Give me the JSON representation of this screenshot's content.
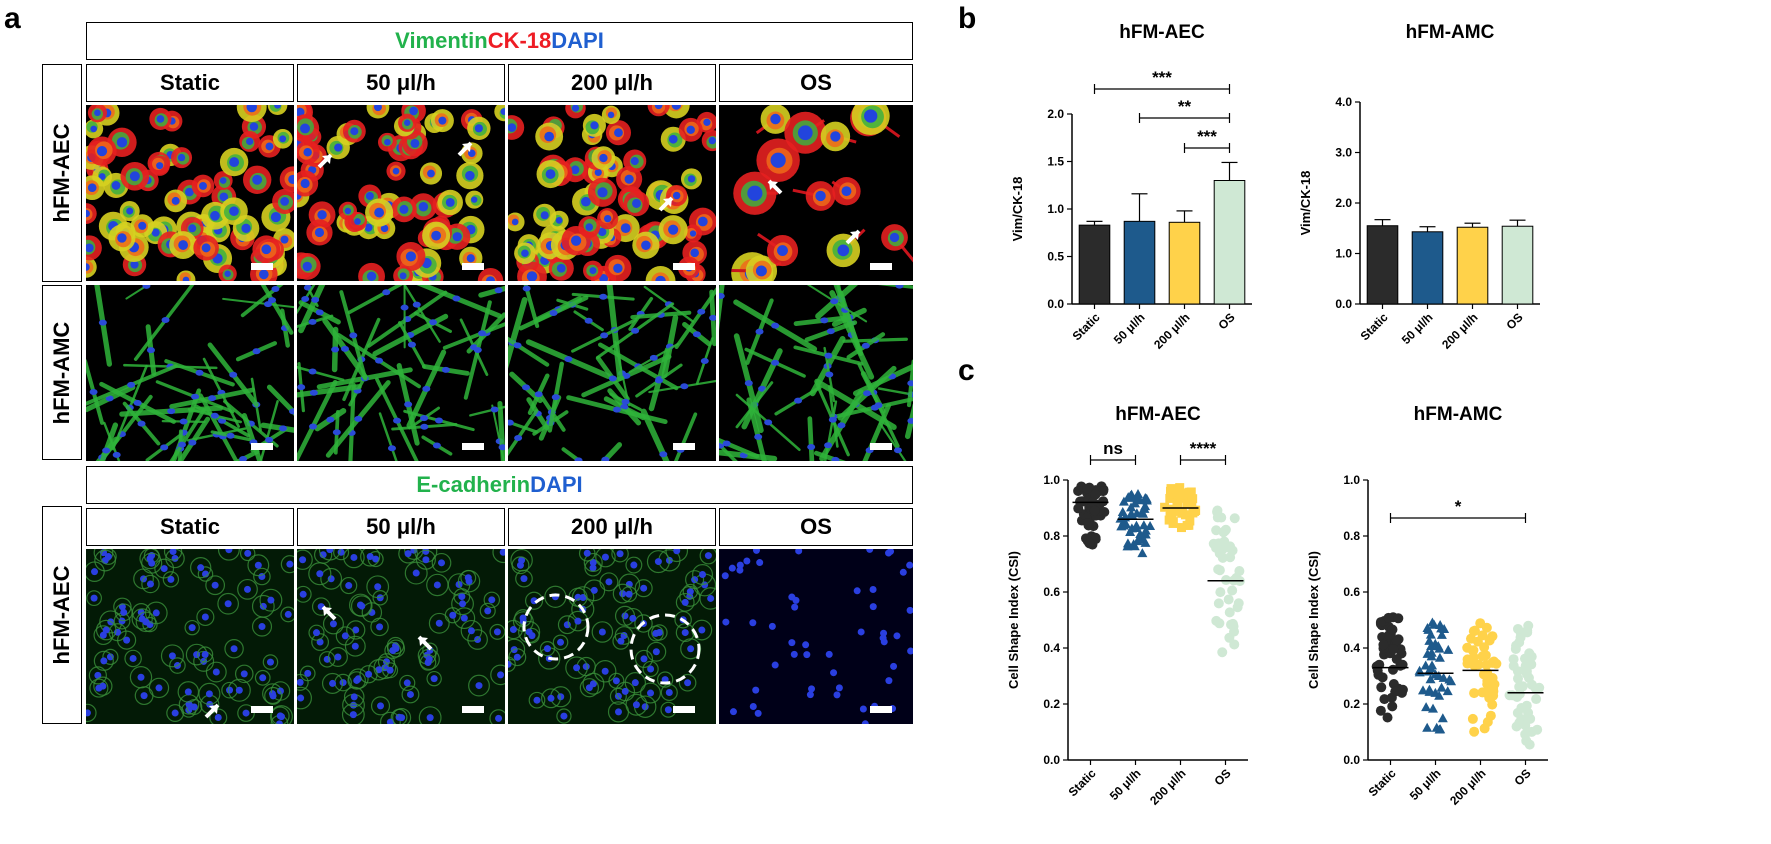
{
  "panel_labels": {
    "a": "a",
    "b": "b",
    "c": "c"
  },
  "panel_a": {
    "stain_title_1": {
      "part1": "Vimentin",
      "part2": "CK-18",
      "part3": "DAPI"
    },
    "stain_title_2": {
      "part1": "E-cadherin",
      "part2": "DAPI"
    },
    "conditions": [
      "Static",
      "50 μl/h",
      "200 μl/h",
      "OS"
    ],
    "row_labels": [
      "hFM-AEC",
      "hFM-AMC",
      "hFM-AEC"
    ],
    "colors": {
      "green": "#22b24c",
      "red": "#ee1c24",
      "blue": "#1f5fd0"
    }
  },
  "chart_data": [
    {
      "id": "b1",
      "type": "bar",
      "title": "hFM-AEC",
      "ylabel": "Vim/CK-18",
      "ylim": [
        0,
        2.0
      ],
      "yticks": [
        "0.0",
        "0.5",
        "1.0",
        "1.5",
        "2.0"
      ],
      "categories": [
        "Static",
        "50 μl/h",
        "200 μl/h",
        "OS"
      ],
      "values": [
        0.83,
        0.87,
        0.86,
        1.3
      ],
      "errors": [
        0.04,
        0.29,
        0.12,
        0.19
      ],
      "colors": [
        "#2b2b2b",
        "#1e5a8c",
        "#ffd24a",
        "#cfe8d4"
      ],
      "significance": [
        {
          "from": 0,
          "to": 3,
          "label": "***"
        },
        {
          "from": 1,
          "to": 3,
          "label": "**"
        },
        {
          "from": 2,
          "to": 3,
          "label": "***"
        }
      ]
    },
    {
      "id": "b2",
      "type": "bar",
      "title": "hFM-AMC",
      "ylabel": "Vim/CK-18",
      "ylim": [
        0,
        4.0
      ],
      "yticks": [
        "0.0",
        "1.0",
        "2.0",
        "3.0",
        "4.0"
      ],
      "categories": [
        "Static",
        "50 μl/h",
        "200 μl/h",
        "OS"
      ],
      "values": [
        1.55,
        1.43,
        1.52,
        1.54
      ],
      "errors": [
        0.12,
        0.1,
        0.08,
        0.12
      ],
      "colors": [
        "#2b2b2b",
        "#1e5a8c",
        "#ffd24a",
        "#cfe8d4"
      ],
      "significance": []
    },
    {
      "id": "c1",
      "type": "scatter",
      "title": "hFM-AEC",
      "ylabel": "Cell Shape Index (CSI)",
      "ylim": [
        0,
        1.0
      ],
      "yticks": [
        "0.0",
        "0.2",
        "0.4",
        "0.6",
        "0.8",
        "1.0"
      ],
      "categories": [
        "Static",
        "50 μl/h",
        "200 μl/h",
        "OS"
      ],
      "means": [
        0.92,
        0.86,
        0.9,
        0.64
      ],
      "spreads": [
        [
          0.76,
          0.98
        ],
        [
          0.73,
          0.95
        ],
        [
          0.8,
          0.98
        ],
        [
          0.38,
          0.9
        ]
      ],
      "markers": [
        "circle",
        "triangle",
        "square",
        "circle"
      ],
      "colors": [
        "#2b2b2b",
        "#1e5a8c",
        "#ffd24a",
        "#cfe8d4"
      ],
      "significance": [
        {
          "from": 0,
          "to": 1,
          "label": "ns"
        },
        {
          "from": 2,
          "to": 3,
          "label": "****"
        }
      ]
    },
    {
      "id": "c2",
      "type": "scatter",
      "title": "hFM-AMC",
      "ylabel": "Cell Shape Index (CSI)",
      "ylim": [
        0,
        1.0
      ],
      "yticks": [
        "0.0",
        "0.2",
        "0.4",
        "0.6",
        "0.8",
        "1.0"
      ],
      "categories": [
        "Static",
        "50 μl/h",
        "200 μl/h",
        "OS"
      ],
      "means": [
        0.33,
        0.31,
        0.32,
        0.24
      ],
      "spreads": [
        [
          0.13,
          0.51
        ],
        [
          0.1,
          0.5
        ],
        [
          0.07,
          0.49
        ],
        [
          0.05,
          0.48
        ]
      ],
      "markers": [
        "circle",
        "triangle",
        "circle",
        "circle"
      ],
      "colors": [
        "#2b2b2b",
        "#1e5a8c",
        "#ffd24a",
        "#cfe8d4"
      ],
      "significance": [
        {
          "from": 0,
          "to": 3,
          "label": "*"
        }
      ]
    }
  ]
}
